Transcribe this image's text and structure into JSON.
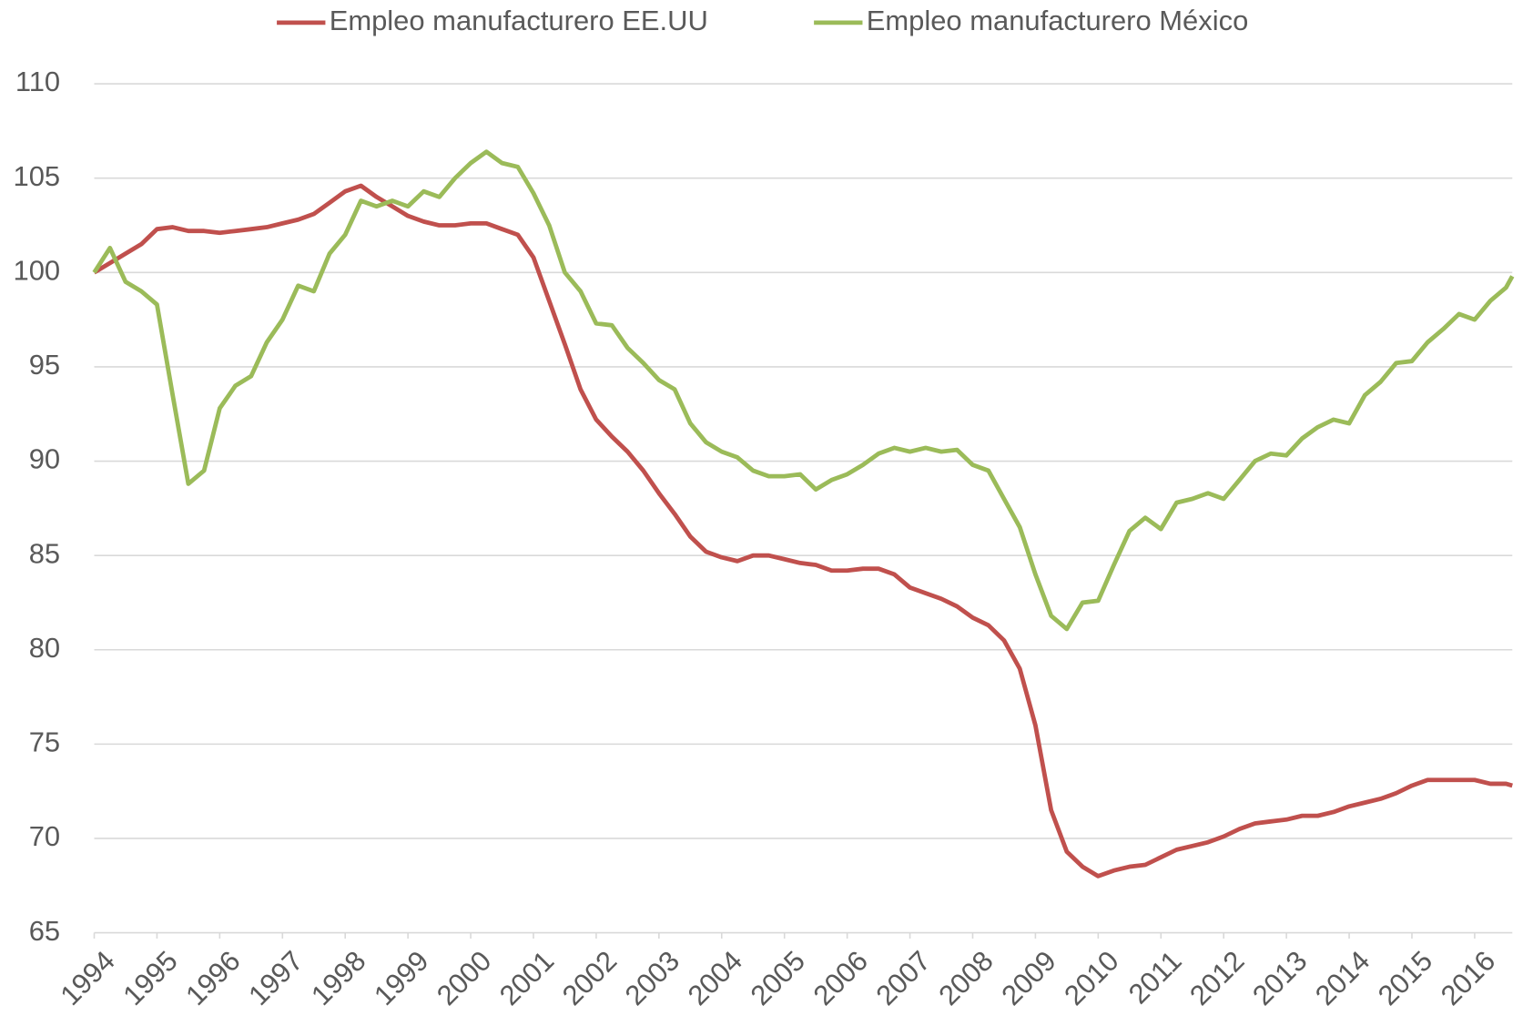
{
  "chart_data": {
    "type": "line",
    "x": [
      1994,
      1994.25,
      1994.5,
      1994.75,
      1995,
      1995.25,
      1995.5,
      1995.75,
      1996,
      1996.25,
      1996.5,
      1996.75,
      1997,
      1997.25,
      1997.5,
      1997.75,
      1998,
      1998.25,
      1998.5,
      1998.75,
      1999,
      1999.25,
      1999.5,
      1999.75,
      2000,
      2000.25,
      2000.5,
      2000.75,
      2001,
      2001.25,
      2001.5,
      2001.75,
      2002,
      2002.25,
      2002.5,
      2002.75,
      2003,
      2003.25,
      2003.5,
      2003.75,
      2004,
      2004.25,
      2004.5,
      2004.75,
      2005,
      2005.25,
      2005.5,
      2005.75,
      2006,
      2006.25,
      2006.5,
      2006.75,
      2007,
      2007.25,
      2007.5,
      2007.75,
      2008,
      2008.25,
      2008.5,
      2008.75,
      2009,
      2009.25,
      2009.5,
      2009.75,
      2010,
      2010.25,
      2010.5,
      2010.75,
      2011,
      2011.25,
      2011.5,
      2011.75,
      2012,
      2012.25,
      2012.5,
      2012.75,
      2013,
      2013.25,
      2013.5,
      2013.75,
      2014,
      2014.25,
      2014.5,
      2014.75,
      2015,
      2015.25,
      2015.5,
      2015.75,
      2016,
      2016.25,
      2016.5,
      2016.6
    ],
    "series": [
      {
        "name": "Empleo manufacturero EE.UU",
        "color": "#c0504d",
        "values": [
          100,
          100.5,
          101,
          101.5,
          102.3,
          102.4,
          102.2,
          102.2,
          102.1,
          102.2,
          102.3,
          102.4,
          102.6,
          102.8,
          103.1,
          103.7,
          104.3,
          104.6,
          104.0,
          103.5,
          103.0,
          102.7,
          102.5,
          102.5,
          102.6,
          102.6,
          102.3,
          102.0,
          100.8,
          98.5,
          96.2,
          93.8,
          92.2,
          91.3,
          90.5,
          89.5,
          88.3,
          87.2,
          86.0,
          85.2,
          84.9,
          84.7,
          85.0,
          85.0,
          84.8,
          84.6,
          84.5,
          84.2,
          84.2,
          84.3,
          84.3,
          84.0,
          83.3,
          83.0,
          82.7,
          82.3,
          81.7,
          81.3,
          80.5,
          79.0,
          76.0,
          71.5,
          69.3,
          68.5,
          68.0,
          68.3,
          68.5,
          68.6,
          69.0,
          69.4,
          69.6,
          69.8,
          70.1,
          70.5,
          70.8,
          70.9,
          71.0,
          71.2,
          71.2,
          71.4,
          71.7,
          71.9,
          72.1,
          72.4,
          72.8,
          73.1,
          73.1,
          73.1,
          73.1,
          72.9,
          72.9,
          72.8
        ]
      },
      {
        "name": "Empleo manufacturero México",
        "color": "#9bbb59",
        "values": [
          100,
          101.3,
          99.5,
          99.0,
          98.3,
          93.5,
          88.8,
          89.5,
          92.8,
          94.0,
          94.5,
          96.3,
          97.5,
          99.3,
          99.0,
          101.0,
          102.0,
          103.8,
          103.5,
          103.8,
          103.5,
          104.3,
          104.0,
          105.0,
          105.8,
          106.4,
          105.8,
          105.6,
          104.2,
          102.5,
          100.0,
          99.0,
          97.3,
          97.2,
          96.0,
          95.2,
          94.3,
          93.8,
          92.0,
          91.0,
          90.5,
          90.2,
          89.5,
          89.2,
          89.2,
          89.3,
          88.5,
          89.0,
          89.3,
          89.8,
          90.4,
          90.7,
          90.5,
          90.7,
          90.5,
          90.6,
          89.8,
          89.5,
          88.0,
          86.5,
          84.0,
          81.8,
          81.1,
          82.5,
          82.6,
          84.5,
          86.3,
          87.0,
          86.4,
          87.8,
          88.0,
          88.3,
          88.0,
          89.0,
          90.0,
          90.4,
          90.3,
          91.2,
          91.8,
          92.2,
          92.0,
          93.5,
          94.2,
          95.2,
          95.3,
          96.3,
          97.0,
          97.8,
          97.5,
          98.5,
          99.2,
          99.8
        ]
      }
    ],
    "xlim": [
      1994,
      2016.6
    ],
    "xticks": [
      1994,
      1995,
      1996,
      1997,
      1998,
      1999,
      2000,
      2001,
      2002,
      2003,
      2004,
      2005,
      2006,
      2007,
      2008,
      2009,
      2010,
      2011,
      2012,
      2013,
      2014,
      2015,
      2016
    ],
    "ylim": [
      65,
      110
    ],
    "yticks": [
      65,
      70,
      75,
      80,
      85,
      90,
      95,
      100,
      105,
      110
    ],
    "grid": true,
    "legend": "top"
  }
}
